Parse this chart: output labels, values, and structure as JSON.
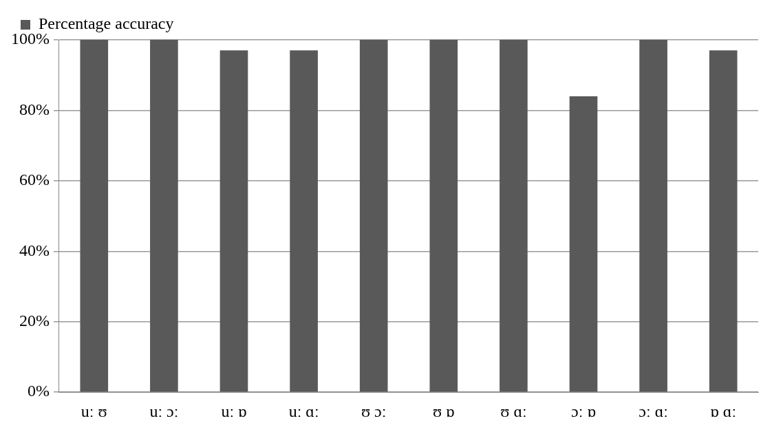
{
  "chart_data": {
    "type": "bar",
    "categories": [
      "uː ʊ",
      "uː ɔː",
      "uː ɒ",
      "uː ɑː",
      "ʊ ɔː",
      "ʊ ɒ",
      "ʊ ɑː",
      "ɔː ɒ",
      "ɔː ɑː",
      "ɒ ɑː"
    ],
    "series": [
      {
        "name": "Percentage accuracy",
        "color": "#595959",
        "values": [
          100,
          100,
          97,
          97,
          100,
          100,
          100,
          84,
          100,
          97
        ]
      }
    ],
    "ylim": [
      0,
      100
    ],
    "yticks": [
      {
        "value": 0,
        "label": "0%"
      },
      {
        "value": 20,
        "label": "20%"
      },
      {
        "value": 40,
        "label": "40%"
      },
      {
        "value": 60,
        "label": "60%"
      },
      {
        "value": 80,
        "label": "80%"
      },
      {
        "value": 100,
        "label": "100%"
      }
    ],
    "grid": "y",
    "legend": "top left"
  }
}
